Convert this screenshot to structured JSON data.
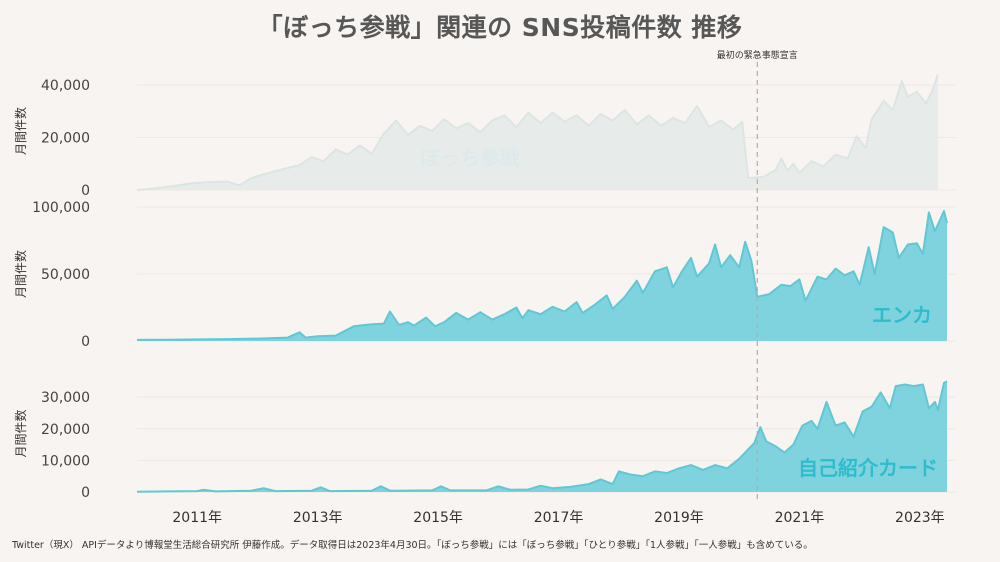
{
  "title": "「ぼっち参戦」関連の SNS投稿件数 推移",
  "footnote": "Twitter（現X） APIデータより博報堂生活総合研究所 伊藤作成。データ取得日は2023年4月30日。「ぼっち参戦」には「ぼっち参戦」「ひとり参戦」「1人参戦」「一人参戦」も含めている。",
  "event_label": "最初の緊急事態宣言",
  "colors": {
    "accent": "#7fd3de",
    "accent_line": "#62c7d3",
    "ghost": "#e7eceb",
    "ghost_line": "#dde5e4",
    "event_line": "#c8a39c",
    "background": "#f8f4f1"
  },
  "chart_data": [
    {
      "type": "area",
      "name": "ぼっち参戦",
      "ylabel": "月間件数",
      "yticks": [
        "0",
        "20,000",
        "40,000"
      ],
      "ylim": [
        0,
        45000
      ],
      "x_ticks": [
        "2011年",
        "2013年",
        "2015年",
        "2017年",
        "2019年",
        "2021年",
        "2023年"
      ],
      "event_x": 2020.3,
      "series": [
        {
          "name": "ぼっち参戦",
          "points": [
            [
              2010.0,
              0
            ],
            [
              2010.3,
              600
            ],
            [
              2010.6,
              1500
            ],
            [
              2010.9,
              2500
            ],
            [
              2011.2,
              3000
            ],
            [
              2011.5,
              3200
            ],
            [
              2011.7,
              1800
            ],
            [
              2011.9,
              4500
            ],
            [
              2012.1,
              6000
            ],
            [
              2012.4,
              7800
            ],
            [
              2012.7,
              9500
            ],
            [
              2012.9,
              12500
            ],
            [
              2013.1,
              11000
            ],
            [
              2013.3,
              15500
            ],
            [
              2013.5,
              13500
            ],
            [
              2013.7,
              17000
            ],
            [
              2013.9,
              13800
            ],
            [
              2014.1,
              21500
            ],
            [
              2014.3,
              26500
            ],
            [
              2014.5,
              21000
            ],
            [
              2014.7,
              24500
            ],
            [
              2014.9,
              22500
            ],
            [
              2015.1,
              27000
            ],
            [
              2015.3,
              23500
            ],
            [
              2015.5,
              25500
            ],
            [
              2015.7,
              22000
            ],
            [
              2015.9,
              26500
            ],
            [
              2016.1,
              28500
            ],
            [
              2016.3,
              24000
            ],
            [
              2016.5,
              29500
            ],
            [
              2016.7,
              25500
            ],
            [
              2016.9,
              29500
            ],
            [
              2017.1,
              26000
            ],
            [
              2017.3,
              28500
            ],
            [
              2017.5,
              24500
            ],
            [
              2017.7,
              29000
            ],
            [
              2017.9,
              26500
            ],
            [
              2018.1,
              30500
            ],
            [
              2018.3,
              25000
            ],
            [
              2018.5,
              28500
            ],
            [
              2018.7,
              24500
            ],
            [
              2018.9,
              27500
            ],
            [
              2019.1,
              25500
            ],
            [
              2019.3,
              32000
            ],
            [
              2019.5,
              24000
            ],
            [
              2019.7,
              26500
            ],
            [
              2019.9,
              23000
            ],
            [
              2020.05,
              26000
            ],
            [
              2020.15,
              4500
            ],
            [
              2020.4,
              5000
            ],
            [
              2020.6,
              7500
            ],
            [
              2020.7,
              12000
            ],
            [
              2020.8,
              7500
            ],
            [
              2020.9,
              10000
            ],
            [
              2021.0,
              6500
            ],
            [
              2021.2,
              11000
            ],
            [
              2021.4,
              9000
            ],
            [
              2021.6,
              13500
            ],
            [
              2021.8,
              12000
            ],
            [
              2021.95,
              20500
            ],
            [
              2022.1,
              16000
            ],
            [
              2022.2,
              27000
            ],
            [
              2022.4,
              34000
            ],
            [
              2022.55,
              30500
            ],
            [
              2022.7,
              41500
            ],
            [
              2022.8,
              35500
            ],
            [
              2022.95,
              37500
            ],
            [
              2023.1,
              33000
            ],
            [
              2023.2,
              37500
            ],
            [
              2023.3,
              44000
            ]
          ]
        }
      ]
    },
    {
      "type": "area",
      "name": "エンカ",
      "label": "エンカ",
      "ylabel": "月間件数",
      "yticks": [
        "0",
        "50,000",
        "100,000"
      ],
      "ylim": [
        0,
        100000
      ],
      "series": [
        {
          "name": "エンカ",
          "points": [
            [
              2010.0,
              800
            ],
            [
              2010.5,
              900
            ],
            [
              2011.0,
              1200
            ],
            [
              2011.5,
              1400
            ],
            [
              2012.0,
              1800
            ],
            [
              2012.5,
              2500
            ],
            [
              2012.7,
              6500
            ],
            [
              2012.8,
              2500
            ],
            [
              2013.0,
              3500
            ],
            [
              2013.3,
              4000
            ],
            [
              2013.6,
              11000
            ],
            [
              2013.9,
              12500
            ],
            [
              2014.1,
              13000
            ],
            [
              2014.2,
              22000
            ],
            [
              2014.35,
              12000
            ],
            [
              2014.5,
              14000
            ],
            [
              2014.6,
              11500
            ],
            [
              2014.8,
              17500
            ],
            [
              2014.95,
              11000
            ],
            [
              2015.1,
              14000
            ],
            [
              2015.3,
              21000
            ],
            [
              2015.5,
              16000
            ],
            [
              2015.7,
              21500
            ],
            [
              2015.9,
              16000
            ],
            [
              2016.1,
              20000
            ],
            [
              2016.3,
              25000
            ],
            [
              2016.4,
              17000
            ],
            [
              2016.5,
              23000
            ],
            [
              2016.7,
              20000
            ],
            [
              2016.9,
              25500
            ],
            [
              2017.1,
              22000
            ],
            [
              2017.3,
              29000
            ],
            [
              2017.4,
              21000
            ],
            [
              2017.6,
              27000
            ],
            [
              2017.8,
              34000
            ],
            [
              2017.9,
              24000
            ],
            [
              2018.1,
              33000
            ],
            [
              2018.3,
              45000
            ],
            [
              2018.4,
              36000
            ],
            [
              2018.6,
              52000
            ],
            [
              2018.8,
              55000
            ],
            [
              2018.9,
              40000
            ],
            [
              2019.05,
              52000
            ],
            [
              2019.2,
              62000
            ],
            [
              2019.3,
              48000
            ],
            [
              2019.5,
              58000
            ],
            [
              2019.6,
              72000
            ],
            [
              2019.7,
              55000
            ],
            [
              2019.85,
              64000
            ],
            [
              2020.0,
              55000
            ],
            [
              2020.1,
              74000
            ],
            [
              2020.2,
              60000
            ],
            [
              2020.3,
              33000
            ],
            [
              2020.5,
              35000
            ],
            [
              2020.7,
              42000
            ],
            [
              2020.85,
              41000
            ],
            [
              2021.0,
              46000
            ],
            [
              2021.1,
              30000
            ],
            [
              2021.3,
              48000
            ],
            [
              2021.45,
              46000
            ],
            [
              2021.6,
              54000
            ],
            [
              2021.75,
              49000
            ],
            [
              2021.9,
              52000
            ],
            [
              2022.0,
              42000
            ],
            [
              2022.15,
              70000
            ],
            [
              2022.25,
              50000
            ],
            [
              2022.4,
              85000
            ],
            [
              2022.55,
              81000
            ],
            [
              2022.65,
              62000
            ],
            [
              2022.8,
              72000
            ],
            [
              2022.95,
              73000
            ],
            [
              2023.05,
              65000
            ],
            [
              2023.15,
              96000
            ],
            [
              2023.25,
              82000
            ],
            [
              2023.4,
              97000
            ],
            [
              2023.45,
              88000
            ]
          ]
        }
      ]
    },
    {
      "type": "area",
      "name": "自己紹介カード",
      "label": "自己紹介カード",
      "ylabel": "月間件数",
      "yticks": [
        "0",
        "10,000",
        "20,000",
        "30,000"
      ],
      "ylim": [
        0,
        37000
      ],
      "series": [
        {
          "name": "自己紹介カード",
          "points": [
            [
              2010.0,
              100
            ],
            [
              2010.5,
              200
            ],
            [
              2011.0,
              300
            ],
            [
              2011.1,
              700
            ],
            [
              2011.3,
              200
            ],
            [
              2011.9,
              400
            ],
            [
              2012.1,
              1200
            ],
            [
              2012.3,
              300
            ],
            [
              2012.9,
              400
            ],
            [
              2013.05,
              1500
            ],
            [
              2013.2,
              300
            ],
            [
              2013.9,
              400
            ],
            [
              2014.05,
              1800
            ],
            [
              2014.2,
              400
            ],
            [
              2014.9,
              500
            ],
            [
              2015.05,
              1800
            ],
            [
              2015.2,
              500
            ],
            [
              2015.8,
              500
            ],
            [
              2016.0,
              1800
            ],
            [
              2016.2,
              700
            ],
            [
              2016.5,
              800
            ],
            [
              2016.7,
              2000
            ],
            [
              2016.9,
              1200
            ],
            [
              2017.2,
              1600
            ],
            [
              2017.5,
              2500
            ],
            [
              2017.7,
              4000
            ],
            [
              2017.9,
              2500
            ],
            [
              2018.0,
              6500
            ],
            [
              2018.2,
              5500
            ],
            [
              2018.4,
              5000
            ],
            [
              2018.6,
              6500
            ],
            [
              2018.8,
              6000
            ],
            [
              2019.0,
              7500
            ],
            [
              2019.2,
              8500
            ],
            [
              2019.4,
              7000
            ],
            [
              2019.6,
              8500
            ],
            [
              2019.8,
              7500
            ],
            [
              2020.0,
              10500
            ],
            [
              2020.15,
              13500
            ],
            [
              2020.25,
              15500
            ],
            [
              2020.35,
              20500
            ],
            [
              2020.45,
              16000
            ],
            [
              2020.6,
              14500
            ],
            [
              2020.75,
              12500
            ],
            [
              2020.9,
              15000
            ],
            [
              2021.05,
              21000
            ],
            [
              2021.2,
              22500
            ],
            [
              2021.3,
              20000
            ],
            [
              2021.45,
              28500
            ],
            [
              2021.6,
              21000
            ],
            [
              2021.75,
              22000
            ],
            [
              2021.9,
              17500
            ],
            [
              2022.05,
              25500
            ],
            [
              2022.2,
              27000
            ],
            [
              2022.35,
              31500
            ],
            [
              2022.5,
              26500
            ],
            [
              2022.6,
              33500
            ],
            [
              2022.75,
              34000
            ],
            [
              2022.9,
              33500
            ],
            [
              2023.05,
              34000
            ],
            [
              2023.15,
              26500
            ],
            [
              2023.25,
              28500
            ],
            [
              2023.3,
              26000
            ],
            [
              2023.4,
              34500
            ],
            [
              2023.45,
              35000
            ]
          ]
        }
      ]
    }
  ]
}
